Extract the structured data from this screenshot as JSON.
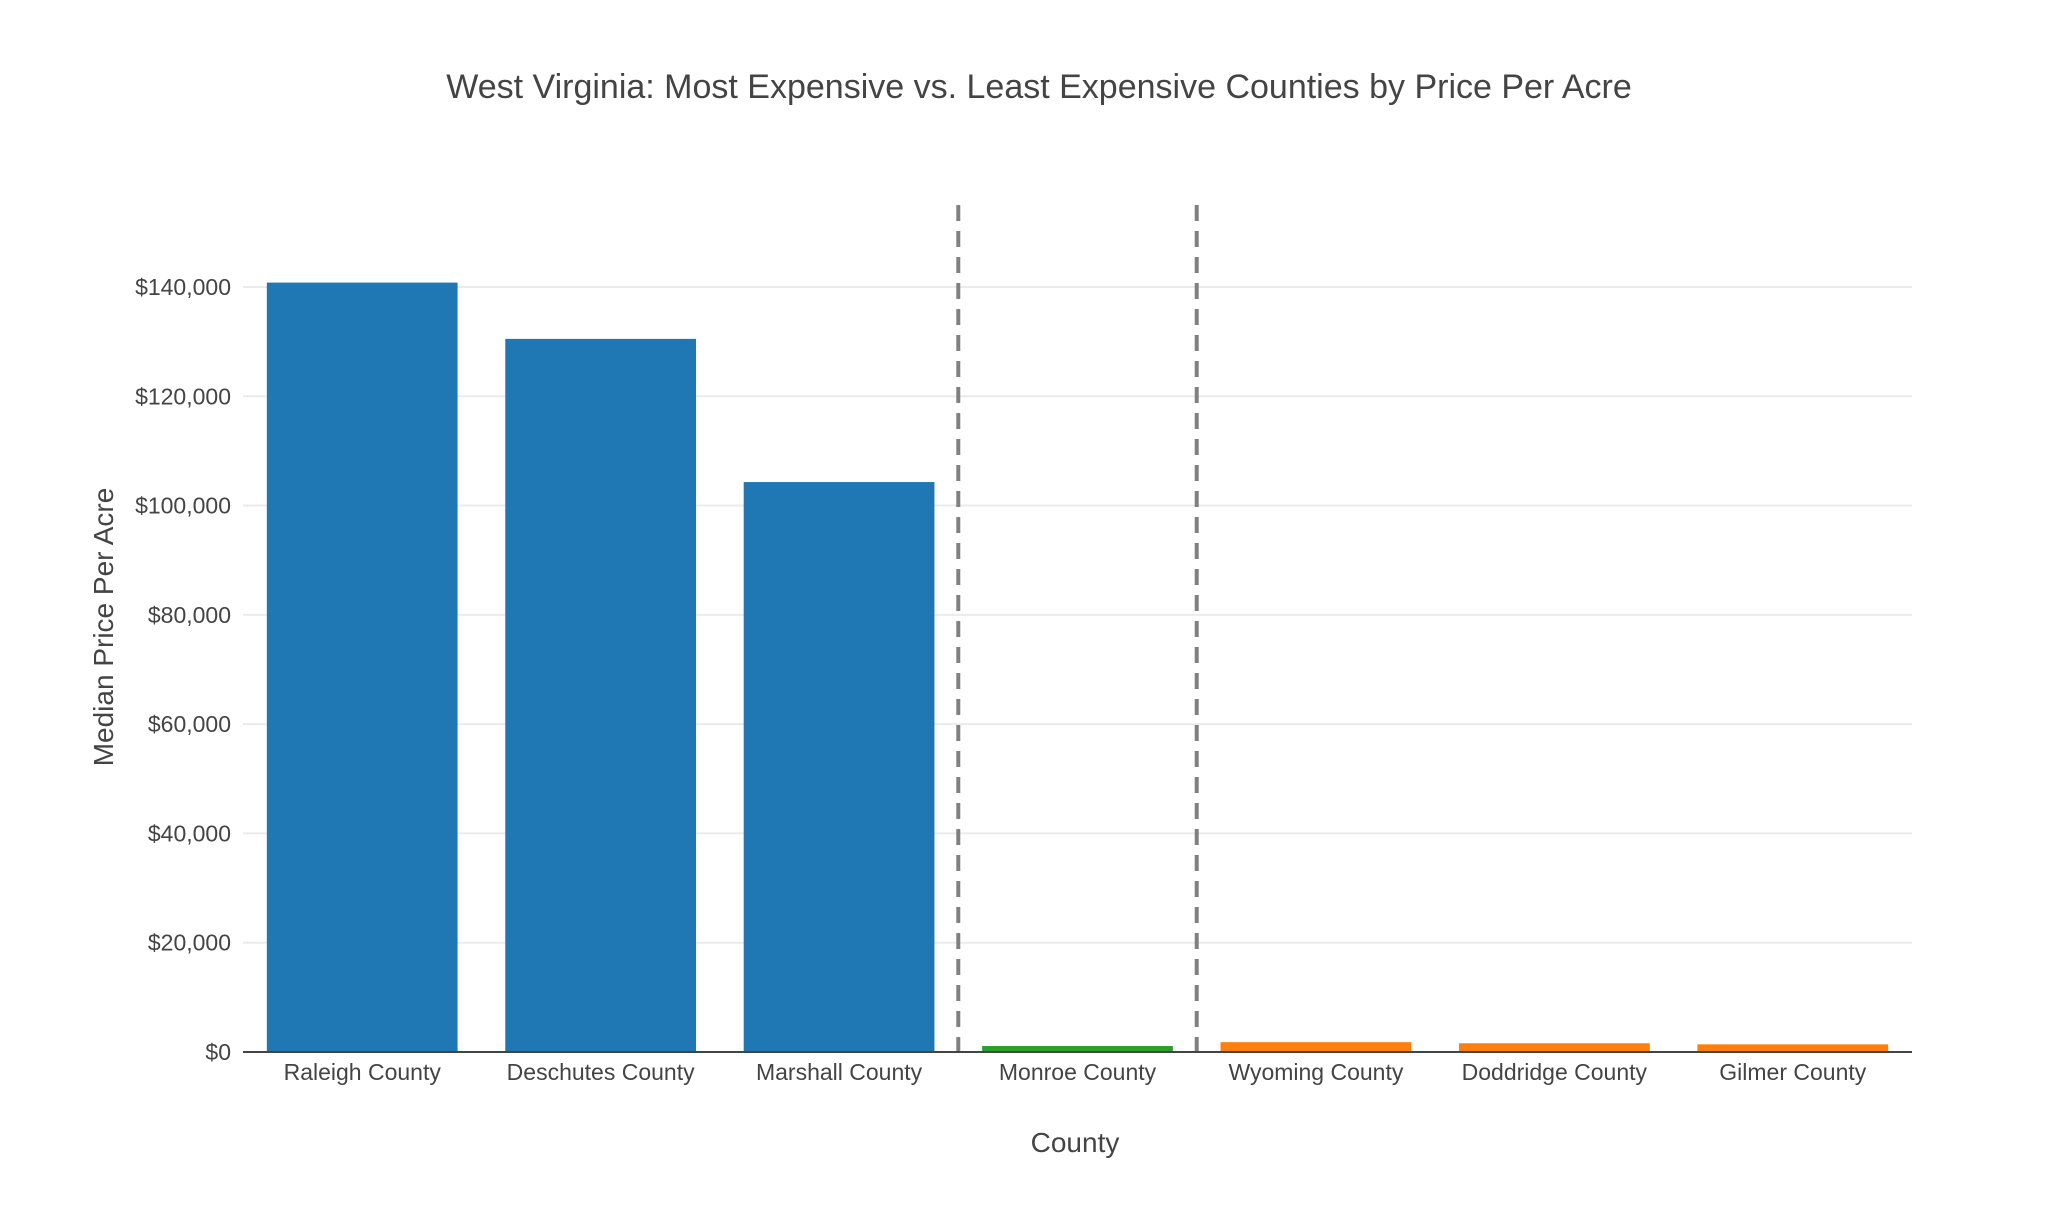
{
  "chart_data": {
    "type": "bar",
    "title": "West Virginia: Most Expensive vs. Least Expensive Counties by Price Per Acre",
    "xlabel": "County",
    "ylabel": "Median Price Per Acre",
    "categories": [
      "Raleigh County",
      "Deschutes County",
      "Marshall County",
      "Monroe County",
      "Wyoming County",
      "Doddridge County",
      "Gilmer County"
    ],
    "values": [
      140800,
      130500,
      104300,
      1100,
      1800,
      1600,
      1400
    ],
    "groups": [
      "most-expensive",
      "most-expensive",
      "most-expensive",
      "middle",
      "least-expensive",
      "least-expensive",
      "least-expensive"
    ],
    "colors": {
      "most-expensive": "#1f77b4",
      "middle": "#2ca02c",
      "least-expensive": "#ff7f0e",
      "divider": "#808080",
      "grid": "#ebebeb",
      "text": "#444444"
    },
    "ylim": [
      0,
      155000
    ],
    "yticks": [
      0,
      20000,
      40000,
      60000,
      80000,
      100000,
      120000,
      140000
    ],
    "ytick_labels": [
      "$0",
      "$20,000",
      "$40,000",
      "$60,000",
      "$80,000",
      "$100,000",
      "$120,000",
      "$140,000"
    ],
    "dividers_after_index": [
      2,
      3
    ],
    "grid": true,
    "legend": "none"
  }
}
